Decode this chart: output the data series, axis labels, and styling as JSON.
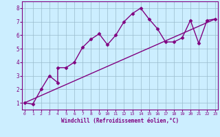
{
  "title": "",
  "xlabel": "Windchill (Refroidissement éolien,°C)",
  "x_data": [
    0,
    1,
    2,
    3,
    4,
    4,
    5,
    6,
    7,
    8,
    9,
    10,
    11,
    12,
    13,
    14,
    15,
    16,
    17,
    18,
    19,
    20,
    21,
    22,
    23
  ],
  "y_data": [
    1.0,
    0.9,
    2.0,
    3.0,
    2.5,
    3.6,
    3.6,
    4.0,
    5.1,
    5.7,
    6.1,
    5.3,
    6.0,
    7.0,
    7.6,
    8.0,
    7.2,
    6.5,
    5.5,
    5.5,
    5.8,
    7.1,
    5.4,
    7.1,
    7.2
  ],
  "line_color": "#800080",
  "trend_color": "#800080",
  "trend_x": [
    0,
    23
  ],
  "trend_y": [
    1.0,
    7.2
  ],
  "xlim": [
    -0.3,
    23.3
  ],
  "ylim": [
    0.5,
    8.5
  ],
  "xticks": [
    0,
    1,
    2,
    3,
    4,
    5,
    6,
    7,
    8,
    9,
    10,
    11,
    12,
    13,
    14,
    15,
    16,
    17,
    18,
    19,
    20,
    21,
    22,
    23
  ],
  "yticks": [
    1,
    2,
    3,
    4,
    5,
    6,
    7,
    8
  ],
  "bg_color": "#cceeff",
  "grid_color": "#99bbcc",
  "marker": "D",
  "marker_size": 2.5,
  "line_width": 1.0
}
